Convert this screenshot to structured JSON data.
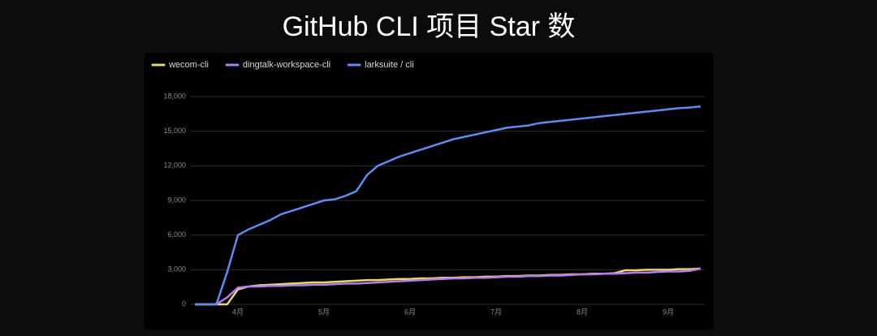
{
  "chart_data": {
    "type": "line",
    "title": "GitHub CLI 项目 Star 数",
    "categories": [
      null,
      null,
      null,
      null,
      "4月",
      null,
      null,
      null,
      null,
      null,
      null,
      null,
      "5月",
      null,
      null,
      null,
      null,
      null,
      null,
      null,
      "6月",
      null,
      null,
      null,
      null,
      null,
      null,
      null,
      "7月",
      null,
      null,
      null,
      null,
      null,
      null,
      null,
      "8月",
      null,
      null,
      null,
      null,
      null,
      null,
      null,
      "9月",
      null,
      null,
      null
    ],
    "series": [
      {
        "name": "wecom-cli",
        "color": "#ecd56a",
        "values": [
          0,
          0,
          0,
          0,
          1300,
          1550,
          1650,
          1700,
          1750,
          1800,
          1850,
          1900,
          1900,
          1950,
          2000,
          2050,
          2100,
          2100,
          2150,
          2200,
          2200,
          2250,
          2250,
          2300,
          2300,
          2350,
          2350,
          2400,
          2400,
          2450,
          2450,
          2500,
          2500,
          2550,
          2550,
          2600,
          2600,
          2650,
          2650,
          2700,
          2950,
          2950,
          3000,
          3000,
          3000,
          3050,
          3050,
          3100
        ]
      },
      {
        "name": "dingtalk-workspace-cli",
        "color": "#b57cf0",
        "values": [
          0,
          0,
          0,
          600,
          1450,
          1550,
          1550,
          1600,
          1600,
          1650,
          1650,
          1700,
          1700,
          1750,
          1800,
          1800,
          1850,
          1900,
          1950,
          2000,
          2050,
          2100,
          2150,
          2200,
          2250,
          2250,
          2300,
          2300,
          2350,
          2400,
          2400,
          2450,
          2450,
          2500,
          2500,
          2550,
          2600,
          2600,
          2650,
          2650,
          2700,
          2750,
          2750,
          2800,
          2850,
          2850,
          2900,
          3100
        ]
      },
      {
        "name": "larksuite / cli",
        "color": "#5b8ef0",
        "values": [
          0,
          0,
          0,
          2800,
          6000,
          6500,
          6900,
          7300,
          7800,
          8100,
          8400,
          8700,
          9000,
          9100,
          9400,
          9800,
          11200,
          12000,
          12400,
          12800,
          13100,
          13400,
          13700,
          14000,
          14300,
          14500,
          14700,
          14900,
          15100,
          15300,
          15400,
          15500,
          15700,
          15800,
          15900,
          16000,
          16100,
          16200,
          16300,
          16400,
          16500,
          16600,
          16700,
          16800,
          16900,
          17000,
          17050,
          17150
        ]
      }
    ],
    "ylim": [
      0,
      18000
    ],
    "yticks": [
      0,
      {
        "value": 3000,
        "label": "3,000"
      },
      {
        "value": 6000,
        "label": "6,000"
      },
      {
        "value": 9000,
        "label": "9,000"
      },
      {
        "value": 12000,
        "label": "12,000"
      },
      {
        "value": 15000,
        "label": "15,000"
      },
      {
        "value": 18000,
        "label": "18,000"
      }
    ],
    "grid": true,
    "legend": "top-left"
  }
}
